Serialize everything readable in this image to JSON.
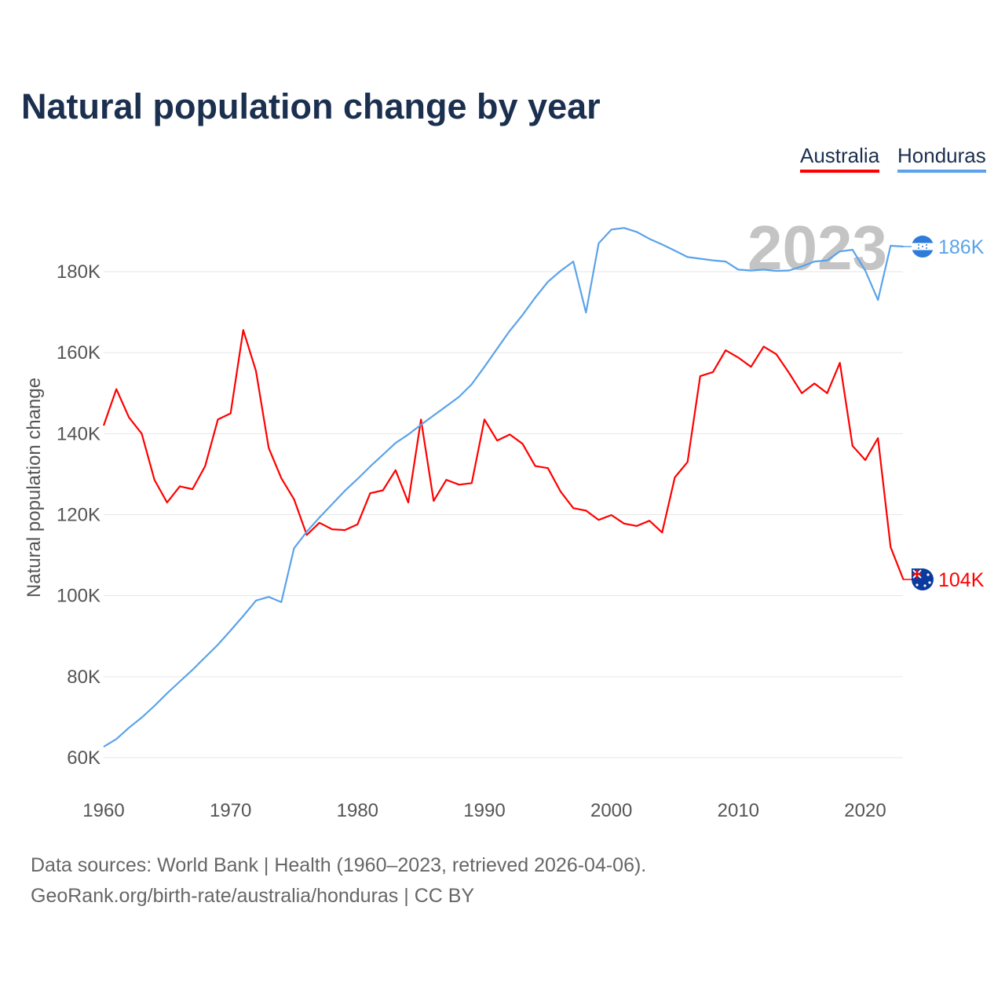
{
  "chart_data": {
    "type": "line",
    "title": "Natural population change by year",
    "xlabel": "",
    "ylabel": "Natural population change",
    "xlim": [
      1960,
      2023
    ],
    "ylim": [
      55000,
      193000
    ],
    "grid": true,
    "x_ticks": [
      "1960",
      "1970",
      "1980",
      "1990",
      "2000",
      "2010",
      "2020"
    ],
    "y_ticks": [
      {
        "v": 60000,
        "label": "60K"
      },
      {
        "v": 80000,
        "label": "80K"
      },
      {
        "v": 100000,
        "label": "100K"
      },
      {
        "v": 120000,
        "label": "120K"
      },
      {
        "v": 140000,
        "label": "140K"
      },
      {
        "v": 160000,
        "label": "160K"
      },
      {
        "v": 180000,
        "label": "180K"
      }
    ],
    "year_label": "2023",
    "legend_position": "top-right",
    "x": [
      1960,
      1961,
      1962,
      1963,
      1964,
      1965,
      1966,
      1967,
      1968,
      1969,
      1970,
      1971,
      1972,
      1973,
      1974,
      1975,
      1976,
      1977,
      1978,
      1979,
      1980,
      1981,
      1982,
      1983,
      1984,
      1985,
      1986,
      1987,
      1988,
      1989,
      1990,
      1991,
      1992,
      1993,
      1994,
      1995,
      1996,
      1997,
      1998,
      1999,
      2000,
      2001,
      2002,
      2003,
      2004,
      2005,
      2006,
      2007,
      2008,
      2009,
      2010,
      2011,
      2012,
      2013,
      2014,
      2015,
      2016,
      2017,
      2018,
      2019,
      2020,
      2021,
      2022,
      2023
    ],
    "series": [
      {
        "name": "Australia",
        "color": "#ff0000",
        "end_label": "104K",
        "flag": "australia-flag",
        "values": [
          142000,
          151000,
          144000,
          140000,
          128600,
          123000,
          127000,
          126300,
          132000,
          143500,
          145000,
          165600,
          155500,
          136500,
          129000,
          123800,
          115000,
          118000,
          116400,
          116200,
          117600,
          125300,
          126000,
          131000,
          123000,
          143500,
          123400,
          128600,
          127400,
          127800,
          143500,
          138300,
          139800,
          137500,
          132000,
          131500,
          125700,
          121600,
          121000,
          118700,
          119900,
          117800,
          117200,
          118500,
          115600,
          129200,
          133000,
          154200,
          155200,
          160600,
          158800,
          156500,
          161500,
          159600,
          155000,
          150000,
          152400,
          150000,
          157500,
          137000,
          133500,
          138900,
          112000,
          104000
        ]
      },
      {
        "name": "Honduras",
        "color": "#5aa3ea",
        "end_label": "186K",
        "flag": "honduras-flag",
        "values": [
          62700,
          64600,
          67400,
          69900,
          72800,
          75900,
          78800,
          81700,
          84800,
          87900,
          91400,
          95000,
          98800,
          99700,
          98400,
          111700,
          115800,
          119300,
          122600,
          125900,
          128800,
          131900,
          134800,
          137700,
          139800,
          142200,
          144500,
          146800,
          149100,
          152200,
          156500,
          161000,
          165400,
          169300,
          173600,
          177500,
          180200,
          182500,
          169900,
          187000,
          190400,
          190800,
          189800,
          188100,
          186700,
          185200,
          183600,
          183200,
          182800,
          182500,
          180500,
          180300,
          180500,
          180200,
          180300,
          181300,
          182500,
          182800,
          185000,
          185400,
          180300,
          173000,
          186400,
          186200
        ]
      }
    ]
  },
  "legend": [
    "Australia",
    "Honduras"
  ],
  "footer": {
    "line1": "Data sources: World Bank | Health (1960–2023, retrieved 2026-04-06).",
    "line2": "GeoRank.org/birth-rate/australia/honduras | CC BY"
  }
}
